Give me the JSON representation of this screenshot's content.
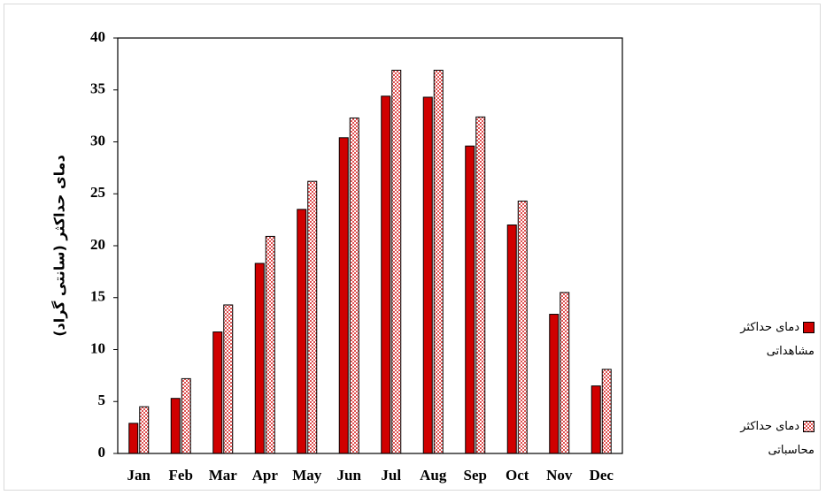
{
  "chart_data": {
    "type": "bar",
    "y_label": "دمای حداکثر (سانتی گراد)",
    "categories": [
      "Jan",
      "Feb",
      "Mar",
      "Apr",
      "May",
      "Jun",
      "Jul",
      "Aug",
      "Sep",
      "Oct",
      "Nov",
      "Dec"
    ],
    "series": [
      {
        "name": "دمای حداکثر مشاهداتی",
        "color": "#d00000",
        "values": [
          2.9,
          5.3,
          11.7,
          18.3,
          23.5,
          30.4,
          34.4,
          34.3,
          29.6,
          22.0,
          13.4,
          6.5
        ]
      },
      {
        "name": "دمای حداکثر محاسباتی",
        "color": "#e05050",
        "pattern": "checker",
        "values": [
          4.5,
          7.2,
          14.3,
          20.9,
          26.2,
          32.3,
          36.9,
          36.9,
          32.4,
          24.3,
          15.5,
          8.1
        ]
      }
    ],
    "ylim": [
      0,
      40
    ],
    "yticks": [
      0,
      5,
      10,
      15,
      20,
      25,
      30,
      35,
      40
    ],
    "legend_position": "right"
  }
}
